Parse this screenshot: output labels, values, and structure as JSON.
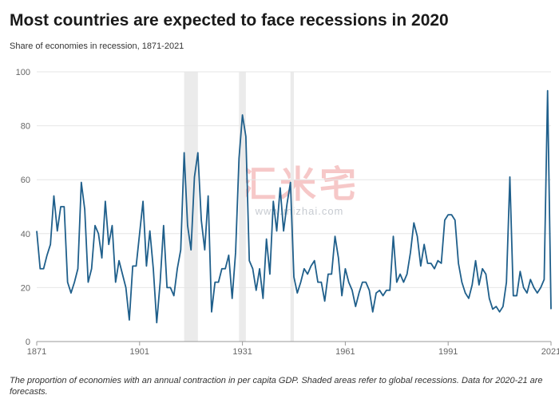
{
  "title": "Most countries are expected to face recessions in 2020",
  "subtitle": "Share of economies in recession, 1871-2021",
  "footnote": "The proportion of economies with an annual contraction in per capita GDP. Shaded areas refer to global recessions. Data for 2020-21 are forecasts.",
  "watermark": {
    "text": "汇米宅",
    "url": "www.mizhai.com"
  },
  "colors": {
    "line": "#1f5f8b",
    "shade": "#ebebeb",
    "grid": "#e6e6e6",
    "axis": "#999999"
  },
  "chart_data": {
    "type": "line",
    "title": "Most countries are expected to face recessions in 2020",
    "subtitle": "Share of economies in recession, 1871-2021",
    "xlabel": "",
    "ylabel": "",
    "xlim": [
      1871,
      2021
    ],
    "ylim": [
      0,
      100
    ],
    "yticks": [
      0,
      20,
      40,
      60,
      80,
      100
    ],
    "xticks": [
      1871,
      1901,
      1931,
      1961,
      1991,
      2021
    ],
    "xtick_labels": [
      "1871",
      "1901",
      "1931",
      "1961",
      "1991",
      "2021"
    ],
    "grid": true,
    "global_recessions": [
      [
        1914,
        1918
      ],
      [
        1930,
        1932
      ],
      [
        1945,
        1946
      ]
    ],
    "series": [
      {
        "name": "",
        "x": [
          1871,
          1872,
          1873,
          1874,
          1875,
          1876,
          1877,
          1878,
          1879,
          1880,
          1881,
          1882,
          1883,
          1884,
          1885,
          1886,
          1887,
          1888,
          1889,
          1890,
          1891,
          1892,
          1893,
          1894,
          1895,
          1896,
          1897,
          1898,
          1899,
          1900,
          1901,
          1902,
          1903,
          1904,
          1905,
          1906,
          1907,
          1908,
          1909,
          1910,
          1911,
          1912,
          1913,
          1914,
          1915,
          1916,
          1917,
          1918,
          1919,
          1920,
          1921,
          1922,
          1923,
          1924,
          1925,
          1926,
          1927,
          1928,
          1929,
          1930,
          1931,
          1932,
          1933,
          1934,
          1935,
          1936,
          1937,
          1938,
          1939,
          1940,
          1941,
          1942,
          1943,
          1944,
          1945,
          1946,
          1947,
          1948,
          1949,
          1950,
          1951,
          1952,
          1953,
          1954,
          1955,
          1956,
          1957,
          1958,
          1959,
          1960,
          1961,
          1962,
          1963,
          1964,
          1965,
          1966,
          1967,
          1968,
          1969,
          1970,
          1971,
          1972,
          1973,
          1974,
          1975,
          1976,
          1977,
          1978,
          1979,
          1980,
          1981,
          1982,
          1983,
          1984,
          1985,
          1986,
          1987,
          1988,
          1989,
          1990,
          1991,
          1992,
          1993,
          1994,
          1995,
          1996,
          1997,
          1998,
          1999,
          2000,
          2001,
          2002,
          2003,
          2004,
          2005,
          2006,
          2007,
          2008,
          2009,
          2010,
          2011,
          2012,
          2013,
          2014,
          2015,
          2016,
          2017,
          2018,
          2019,
          2020,
          2021
        ],
        "y": [
          41,
          27,
          27,
          32,
          36,
          54,
          41,
          50,
          50,
          22,
          18,
          22,
          27,
          59,
          49,
          22,
          27,
          43,
          40,
          31,
          52,
          36,
          43,
          22,
          30,
          25,
          20,
          8,
          28,
          28,
          40,
          52,
          28,
          41,
          27,
          7,
          22,
          43,
          20,
          20,
          17,
          27,
          34,
          70,
          43,
          34,
          61,
          70,
          45,
          34,
          54,
          11,
          22,
          22,
          27,
          27,
          32,
          16,
          33,
          68,
          84,
          76,
          30,
          27,
          19,
          27,
          16,
          38,
          25,
          52,
          41,
          57,
          41,
          51,
          59,
          24,
          18,
          22,
          27,
          25,
          28,
          30,
          22,
          22,
          15,
          25,
          25,
          39,
          31,
          17,
          27,
          22,
          19,
          13,
          18,
          22,
          22,
          19,
          11,
          18,
          19,
          17,
          19,
          19,
          39,
          22,
          25,
          22,
          25,
          33,
          44,
          39,
          28,
          36,
          29,
          29,
          27,
          30,
          29,
          45,
          47,
          47,
          45,
          29,
          22,
          18,
          16,
          21,
          30,
          21,
          27,
          25,
          16,
          12,
          13,
          11,
          13,
          22,
          61,
          17,
          17,
          26,
          20,
          18,
          23,
          20,
          18,
          20,
          23,
          93,
          12
        ]
      }
    ]
  }
}
